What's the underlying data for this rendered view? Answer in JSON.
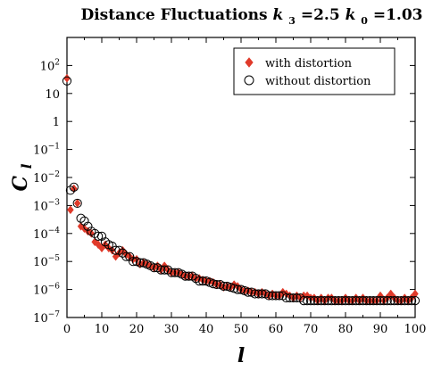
{
  "chart_data": {
    "type": "scatter",
    "title": {
      "prefix": "Distance Fluctuations ",
      "k3_var": "k",
      "k3_sub": "3",
      "k3_val": "=2.5 ",
      "k0_var": "k",
      "k0_sub": "0",
      "k0_val": "=1.03"
    },
    "xlabel": "l",
    "ylabel": {
      "main": "C",
      "sub": "l"
    },
    "xlim": [
      0,
      100
    ],
    "ylim_log10": [
      -7,
      3
    ],
    "y_scale": "log",
    "grid": false,
    "legend_position": "top-right",
    "x_ticks": [
      "0",
      "10",
      "20",
      "30",
      "40",
      "50",
      "60",
      "70",
      "80",
      "90",
      "100"
    ],
    "y_ticks": [
      {
        "value": 100,
        "base": "10",
        "exp": "2"
      },
      {
        "value": 10,
        "base": "10",
        "exp": ""
      },
      {
        "value": 1,
        "base": "1",
        "exp": ""
      },
      {
        "value": 0.1,
        "base": "10",
        "exp": "−1"
      },
      {
        "value": 0.01,
        "base": "10",
        "exp": "−2"
      },
      {
        "value": 0.001,
        "base": "10",
        "exp": "−3"
      },
      {
        "value": 0.0001,
        "base": "10",
        "exp": "−4"
      },
      {
        "value": 1e-05,
        "base": "10",
        "exp": "−5"
      },
      {
        "value": 1e-06,
        "base": "10",
        "exp": "−6"
      },
      {
        "value": 1e-07,
        "base": "10",
        "exp": "−7"
      }
    ],
    "series": [
      {
        "name": "with distortion",
        "marker": "diamond",
        "color": "#e03a2a",
        "x": [
          0,
          1,
          2,
          3,
          4,
          5,
          6,
          7,
          8,
          9,
          10,
          11,
          12,
          13,
          14,
          15,
          16,
          17,
          18,
          19,
          20,
          21,
          22,
          23,
          24,
          25,
          26,
          27,
          28,
          29,
          30,
          31,
          32,
          33,
          34,
          35,
          36,
          37,
          38,
          39,
          40,
          41,
          42,
          43,
          44,
          45,
          46,
          47,
          48,
          49,
          50,
          51,
          52,
          53,
          54,
          55,
          56,
          57,
          58,
          59,
          60,
          61,
          62,
          63,
          64,
          65,
          66,
          67,
          68,
          69,
          70,
          71,
          72,
          73,
          74,
          75,
          76,
          77,
          78,
          79,
          80,
          81,
          82,
          83,
          84,
          85,
          86,
          87,
          88,
          89,
          90,
          91,
          92,
          93,
          94,
          95,
          96,
          97,
          98,
          99,
          100
        ],
        "y": [
          35,
          0.0007,
          0.004,
          0.0012,
          0.00018,
          0.00015,
          0.00012,
          0.0001,
          5e-05,
          4e-05,
          3e-05,
          4e-05,
          3e-05,
          2.5e-05,
          1.5e-05,
          2e-05,
          2.5e-05,
          1.8e-05,
          1.5e-05,
          1.2e-05,
          1.2e-05,
          8e-06,
          9e-06,
          8e-06,
          7e-06,
          6e-06,
          7e-06,
          5e-06,
          7e-06,
          5e-06,
          4e-06,
          4e-06,
          4e-06,
          3.5e-06,
          3e-06,
          3e-06,
          3e-06,
          2.5e-06,
          2.5e-06,
          2.2e-06,
          2e-06,
          2e-06,
          1.8e-06,
          1.5e-06,
          1.5e-06,
          1.2e-06,
          1.3e-06,
          1.2e-06,
          1.5e-06,
          1.3e-06,
          1e-06,
          9e-07,
          9e-07,
          8e-07,
          8e-07,
          7e-07,
          8e-07,
          7e-07,
          6e-07,
          7e-07,
          6e-07,
          6e-07,
          8e-07,
          7e-07,
          6e-07,
          5e-07,
          6e-07,
          5e-07,
          6e-07,
          6e-07,
          5e-07,
          5e-07,
          4e-07,
          5e-07,
          4e-07,
          5e-07,
          5e-07,
          4e-07,
          4e-07,
          4e-07,
          5e-07,
          4e-07,
          4e-07,
          5e-07,
          4e-07,
          5e-07,
          4e-07,
          4e-07,
          4e-07,
          4e-07,
          6e-07,
          4e-07,
          5e-07,
          7e-07,
          5e-07,
          4e-07,
          4e-07,
          5e-07,
          4e-07,
          5e-07,
          7e-07
        ]
      },
      {
        "name": "without distortion",
        "marker": "circle",
        "color": "#000000",
        "x": [
          0,
          1,
          2,
          3,
          4,
          5,
          6,
          7,
          8,
          9,
          10,
          11,
          12,
          13,
          14,
          15,
          16,
          17,
          18,
          19,
          20,
          21,
          22,
          23,
          24,
          25,
          26,
          27,
          28,
          29,
          30,
          31,
          32,
          33,
          34,
          35,
          36,
          37,
          38,
          39,
          40,
          41,
          42,
          43,
          44,
          45,
          46,
          47,
          48,
          49,
          50,
          51,
          52,
          53,
          54,
          55,
          56,
          57,
          58,
          59,
          60,
          61,
          62,
          63,
          64,
          65,
          66,
          67,
          68,
          69,
          70,
          71,
          72,
          73,
          74,
          75,
          76,
          77,
          78,
          79,
          80,
          81,
          82,
          83,
          84,
          85,
          86,
          87,
          88,
          89,
          90,
          91,
          92,
          93,
          94,
          95,
          96,
          97,
          98,
          99,
          100
        ],
        "y": [
          28,
          0.0035,
          0.0045,
          0.0012,
          0.00035,
          0.00028,
          0.00018,
          0.00012,
          0.0001,
          8e-05,
          8e-05,
          5e-05,
          4e-05,
          3.5e-05,
          2.5e-05,
          2.5e-05,
          2e-05,
          1.5e-05,
          1.5e-05,
          1e-05,
          1e-05,
          9e-06,
          9e-06,
          8e-06,
          7e-06,
          6e-06,
          6e-06,
          5e-06,
          5e-06,
          5e-06,
          4e-06,
          4e-06,
          4e-06,
          3.5e-06,
          3e-06,
          3e-06,
          3e-06,
          2.5e-06,
          2e-06,
          2e-06,
          2e-06,
          1.8e-06,
          1.6e-06,
          1.5e-06,
          1.5e-06,
          1.3e-06,
          1.3e-06,
          1.2e-06,
          1.1e-06,
          1e-06,
          1e-06,
          9e-07,
          8e-07,
          8e-07,
          7e-07,
          7e-07,
          7e-07,
          7e-07,
          6e-07,
          6e-07,
          6e-07,
          6e-07,
          6e-07,
          5e-07,
          5e-07,
          5e-07,
          5e-07,
          5e-07,
          4e-07,
          4e-07,
          4e-07,
          4e-07,
          4e-07,
          4e-07,
          4e-07,
          4e-07,
          4e-07,
          4e-07,
          4e-07,
          4e-07,
          4e-07,
          4e-07,
          4e-07,
          4e-07,
          4e-07,
          4e-07,
          4e-07,
          4e-07,
          4e-07,
          4e-07,
          4e-07,
          4e-07,
          4e-07,
          4e-07,
          4e-07,
          4e-07,
          4e-07,
          4e-07,
          4e-07,
          4e-07,
          4e-07
        ]
      }
    ]
  }
}
